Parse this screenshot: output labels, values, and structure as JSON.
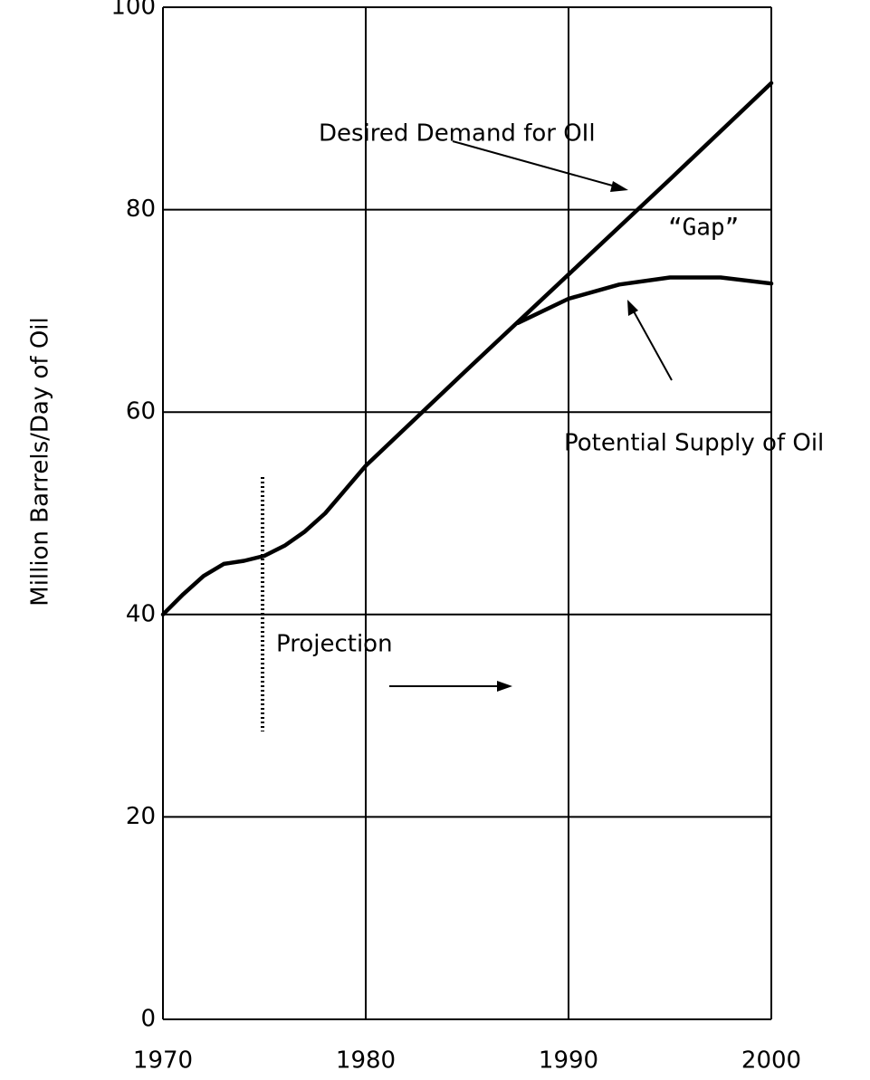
{
  "chart_data": {
    "type": "line",
    "ylabel": "Million Barrels/Day of Oil",
    "xlim": [
      1970,
      2000
    ],
    "xticks": [
      1970,
      1980,
      1990,
      2000
    ],
    "ylim": [
      0,
      100
    ],
    "yticks": [
      0,
      20,
      40,
      60,
      80,
      100
    ],
    "grid": true,
    "series": [
      {
        "name": "Desired Demand for OIl",
        "color": "#000000",
        "x": [
          1970,
          1971,
          1972,
          1973,
          1974,
          1975,
          1976,
          1977,
          1978,
          1980,
          1985,
          1990,
          1995,
          2000
        ],
        "values": [
          40,
          42,
          43.8,
          45,
          45.3,
          45.8,
          46.8,
          48.2,
          50,
          54.7,
          64.2,
          73.6,
          83,
          92.5
        ]
      },
      {
        "name": "Potential Supply of Oil",
        "color": "#000000",
        "x": [
          1987.5,
          1990,
          1992.5,
          1995,
          1997.5,
          2000
        ],
        "values": [
          68.8,
          71.2,
          72.6,
          73.3,
          73.3,
          72.7
        ]
      }
    ],
    "annotations": [
      "“Gap”",
      "Projection"
    ]
  }
}
